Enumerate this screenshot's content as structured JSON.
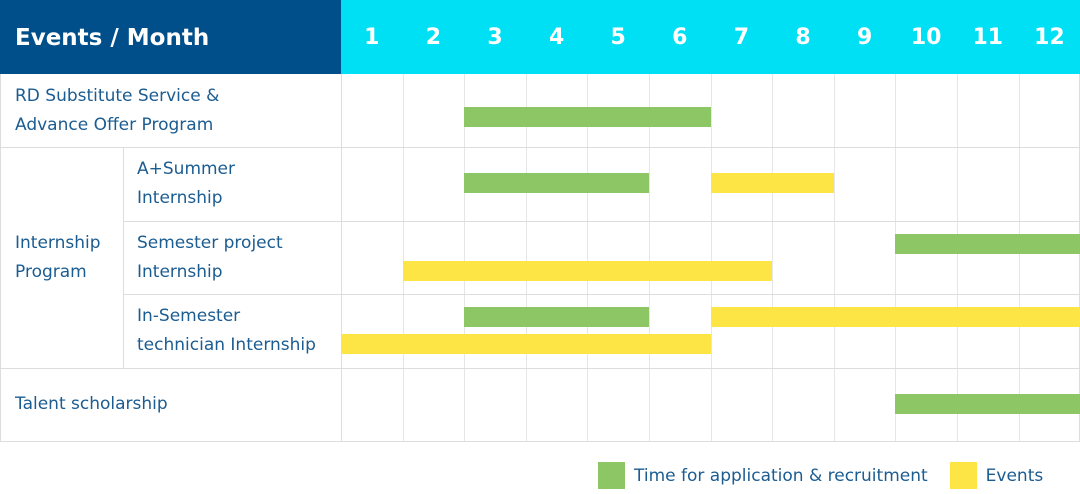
{
  "chart_data": {
    "type": "gantt",
    "header_label": "Events / Month",
    "months": [
      "1",
      "2",
      "3",
      "4",
      "5",
      "6",
      "7",
      "8",
      "9",
      "10",
      "11",
      "12"
    ],
    "groups": [
      {
        "label": "RD Substitute Service & Advance Offer Program",
        "label_lines": [
          "RD Substitute Service &",
          "Advance Offer Program"
        ],
        "rows": [
          {
            "label_lines": [],
            "bars": [
              {
                "series": "application",
                "start": 3,
                "end": 6
              }
            ]
          }
        ]
      },
      {
        "label": "Internship Program",
        "label_lines": [
          "Internship",
          "Program"
        ],
        "rows": [
          {
            "label_lines": [
              "A+Summer",
              "Internship"
            ],
            "bars": [
              {
                "series": "application",
                "start": 3,
                "end": 5
              },
              {
                "series": "events",
                "start": 7,
                "end": 8
              }
            ]
          },
          {
            "label_lines": [
              "Semester project",
              "Internship"
            ],
            "bars": [
              {
                "series": "application",
                "start": 10,
                "end": 12
              },
              {
                "series": "events",
                "start": 2,
                "end": 7
              }
            ]
          },
          {
            "label_lines": [
              "In-Semester",
              "technician Internship"
            ],
            "bars": [
              {
                "series": "application",
                "start": 3,
                "end": 5
              },
              {
                "series": "events",
                "start": 7,
                "end": 12
              },
              {
                "series": "events",
                "start": 1,
                "end": 6
              }
            ]
          }
        ]
      },
      {
        "label": "Talent scholarship",
        "label_lines": [
          "Talent scholarship"
        ],
        "rows": [
          {
            "label_lines": [],
            "bars": [
              {
                "series": "application",
                "start": 10,
                "end": 12
              }
            ]
          }
        ]
      }
    ],
    "legend": [
      {
        "key": "application",
        "name": "Time for application & recruitment",
        "color": "#8cc665"
      },
      {
        "key": "events",
        "name": "Events",
        "color": "#fde545"
      }
    ],
    "legend_position": "bottom-right",
    "header_colors": {
      "left": "#004f8a",
      "right": "#00e0f4"
    }
  }
}
